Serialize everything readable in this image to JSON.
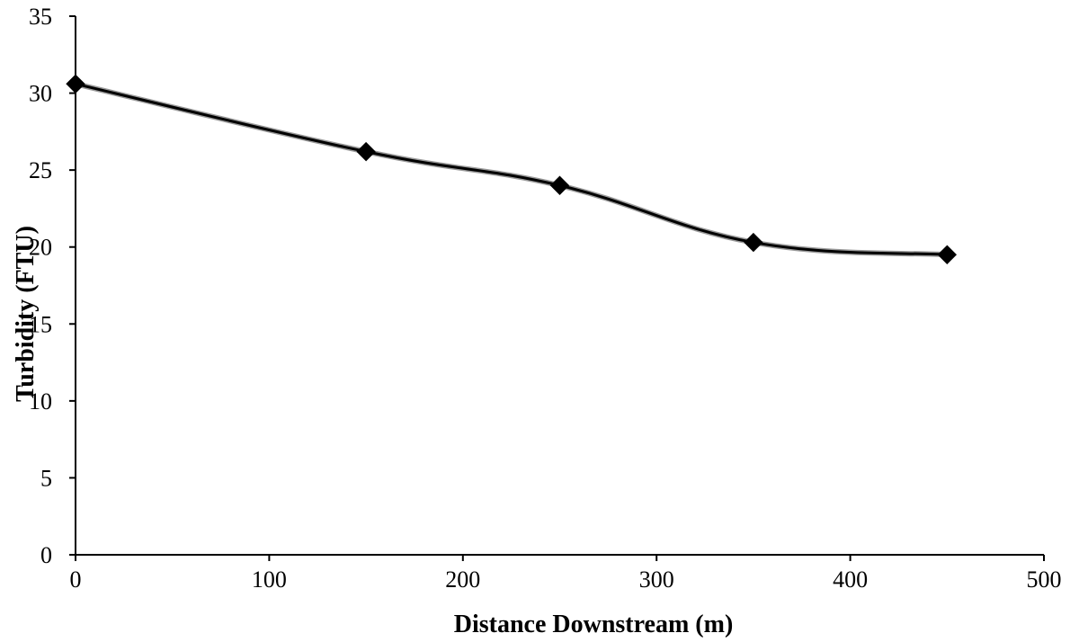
{
  "chart_data": {
    "type": "line",
    "title": "",
    "xlabel": "Distance Downstream (m)",
    "ylabel": "Turbidity (FTU)",
    "xlim": [
      0,
      500
    ],
    "ylim": [
      0,
      35
    ],
    "xticks": [
      0,
      100,
      200,
      300,
      400,
      500
    ],
    "yticks": [
      0,
      5,
      10,
      15,
      20,
      25,
      30,
      35
    ],
    "grid": false,
    "legend": "none",
    "marker": "diamond",
    "smooth": true,
    "series": [
      {
        "x": [
          0,
          150,
          250,
          350,
          450
        ],
        "y": [
          30.6,
          26.2,
          24.0,
          20.3,
          19.5
        ],
        "color": "#000000"
      }
    ]
  }
}
